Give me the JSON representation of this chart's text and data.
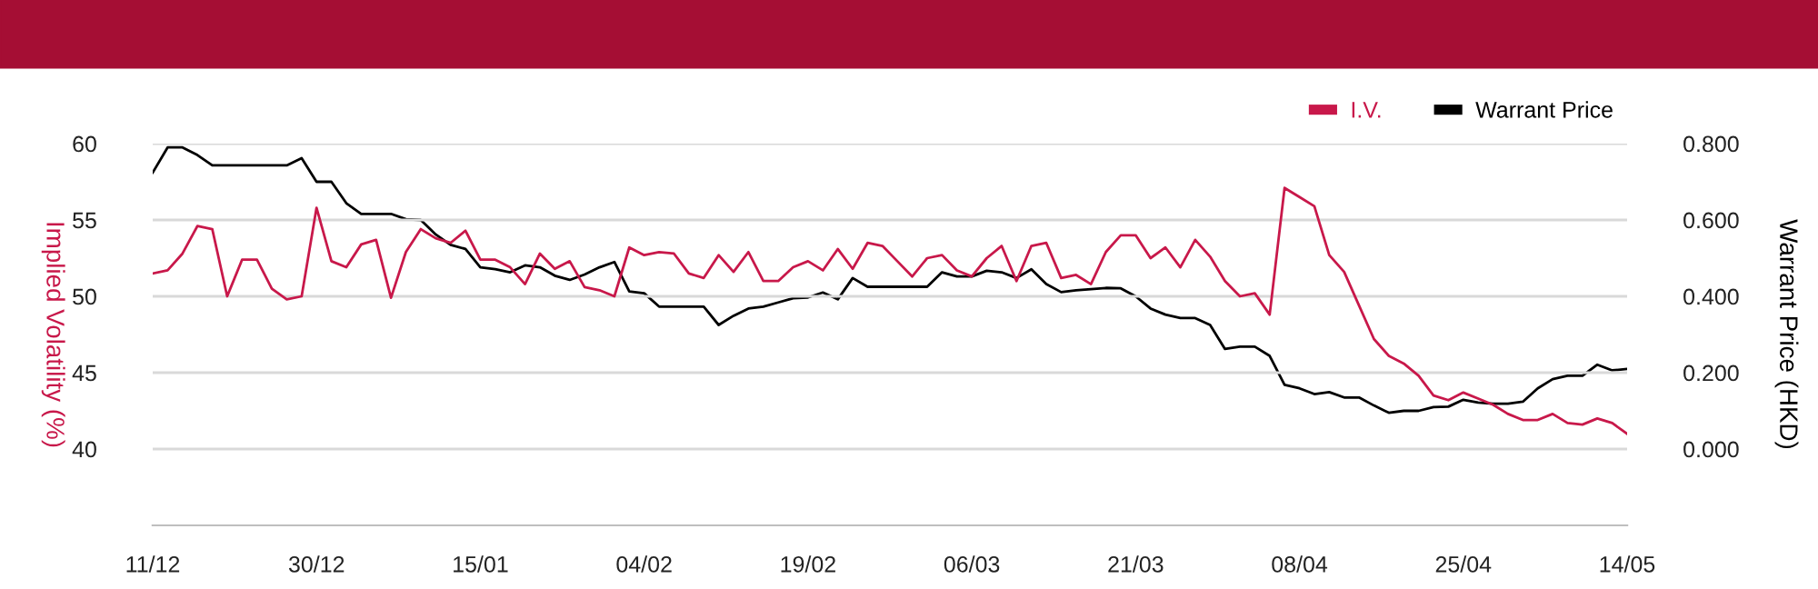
{
  "chart_data": {
    "type": "line",
    "categories": [
      "11/12",
      null,
      null,
      null,
      null,
      null,
      null,
      null,
      null,
      null,
      null,
      "30/12",
      null,
      null,
      null,
      null,
      null,
      null,
      null,
      null,
      null,
      null,
      "15/01",
      null,
      null,
      null,
      null,
      null,
      null,
      null,
      null,
      null,
      null,
      "04/02",
      null,
      null,
      null,
      null,
      null,
      null,
      null,
      null,
      null,
      null,
      "19/02",
      null,
      null,
      null,
      null,
      null,
      null,
      null,
      null,
      null,
      null,
      "06/03",
      null,
      null,
      null,
      null,
      null,
      null,
      null,
      null,
      null,
      null,
      "21/03",
      null,
      null,
      null,
      null,
      null,
      null,
      null,
      null,
      null,
      null,
      "08/04",
      null,
      null,
      null,
      null,
      null,
      null,
      null,
      null,
      null,
      null,
      "25/04",
      null,
      null,
      null,
      null,
      null,
      null,
      null,
      null,
      null,
      null,
      "14/05"
    ],
    "series": [
      {
        "name": "I.V.",
        "color": "#c8184a",
        "values": [
          51.5,
          51.7,
          52.8,
          54.6,
          54.4,
          50.0,
          52.4,
          52.4,
          50.5,
          49.8,
          50.0,
          55.8,
          52.3,
          51.9,
          53.4,
          53.7,
          49.9,
          52.9,
          54.4,
          53.8,
          53.5,
          54.3,
          52.4,
          52.4,
          51.9,
          50.8,
          52.8,
          51.8,
          52.3,
          50.6,
          50.4,
          50.0,
          53.2,
          52.7,
          52.9,
          52.8,
          51.5,
          51.2,
          52.7,
          51.6,
          52.9,
          51.0,
          51.0,
          51.9,
          52.3,
          51.7,
          53.1,
          51.8,
          53.5,
          53.3,
          52.3,
          51.3,
          52.5,
          52.7,
          51.7,
          51.3,
          52.5,
          53.3,
          51.0,
          53.3,
          53.5,
          51.2,
          51.4,
          50.8,
          52.9,
          54.0,
          54.0,
          52.5,
          53.2,
          51.9,
          53.7,
          52.6,
          51.0,
          50.0,
          50.2,
          48.8,
          57.1,
          56.5,
          55.9,
          52.7,
          51.6,
          49.4,
          47.2,
          46.1,
          45.6,
          44.8,
          43.5,
          43.2,
          43.7,
          43.3,
          42.9,
          42.3,
          41.9,
          41.9,
          42.3,
          41.7,
          41.6,
          42.0,
          41.7,
          41.0
        ]
      },
      {
        "name": "Warrant Price",
        "color": "#000000",
        "axis": "y2",
        "values": [
          0.724,
          0.79,
          0.79,
          0.77,
          0.743,
          0.743,
          0.743,
          0.743,
          0.743,
          0.743,
          0.762,
          0.7,
          0.7,
          0.644,
          0.616,
          0.616,
          0.616,
          0.602,
          0.6,
          0.562,
          0.535,
          0.524,
          0.476,
          0.471,
          0.463,
          0.481,
          0.476,
          0.454,
          0.443,
          0.457,
          0.476,
          0.49,
          0.413,
          0.408,
          0.373,
          0.373,
          0.373,
          0.373,
          0.325,
          0.349,
          0.368,
          0.373,
          0.384,
          0.395,
          0.397,
          0.41,
          0.392,
          0.448,
          0.425,
          0.425,
          0.425,
          0.425,
          0.425,
          0.463,
          0.452,
          0.452,
          0.467,
          0.463,
          0.448,
          0.471,
          0.432,
          0.411,
          0.416,
          0.419,
          0.422,
          0.421,
          0.4,
          0.368,
          0.352,
          0.343,
          0.343,
          0.325,
          0.262,
          0.268,
          0.268,
          0.244,
          0.168,
          0.159,
          0.144,
          0.149,
          0.135,
          0.135,
          0.114,
          0.095,
          0.1,
          0.1,
          0.11,
          0.111,
          0.129,
          0.122,
          0.119,
          0.119,
          0.124,
          0.159,
          0.183,
          0.192,
          0.192,
          0.221,
          0.206,
          0.21
        ]
      }
    ],
    "ylabel": "Implied Volatility (%)",
    "y2label": "Warrant Price (HKD)",
    "ylim": [
      35,
      60
    ],
    "yticks": [
      40,
      45,
      50,
      55,
      60
    ],
    "y2lim": [
      -0.2,
      0.8
    ],
    "y2ticks": [
      {
        "value": 0,
        "label": "0.000"
      },
      {
        "value": 0.2,
        "label": "0.200"
      },
      {
        "value": 0.4,
        "label": "0.400"
      },
      {
        "value": 0.6,
        "label": "0.600"
      },
      {
        "value": 0.8,
        "label": "0.800"
      }
    ],
    "grid": "y",
    "legend": "top right",
    "marker": "none",
    "line_style": "solid"
  }
}
